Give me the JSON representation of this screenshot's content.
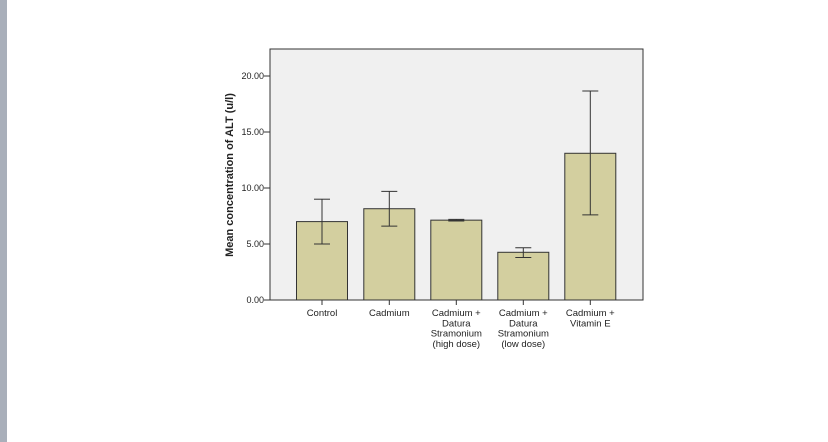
{
  "chart_data": {
    "type": "bar",
    "title": "",
    "xlabel": "",
    "ylabel": "Mean concentration of ALT (u/l)",
    "ylim": [
      0,
      20
    ],
    "yticks": [
      "0.00",
      "5.00",
      "10.00",
      "15.00",
      "20.00"
    ],
    "grid": false,
    "categories": [
      [
        "Control"
      ],
      [
        "Cadmium"
      ],
      [
        "Cadmium +",
        "Datura",
        "Stramonium",
        "(high dose)"
      ],
      [
        "Cadmium +",
        "Datura",
        "Stramonium",
        "(low dose)"
      ],
      [
        "Cadmium +",
        "Vitamin E"
      ]
    ],
    "values": [
      7.0,
      8.15,
      7.13,
      4.26,
      13.1
    ],
    "error_upper": [
      9.0,
      9.7,
      7.2,
      4.67,
      18.66
    ],
    "error_lower": [
      5.0,
      6.6,
      7.05,
      3.8,
      7.6
    ],
    "colors": {
      "bar": "#d3cf9f",
      "plot_bg": "#f0f0f0",
      "stroke": "#333333"
    }
  }
}
